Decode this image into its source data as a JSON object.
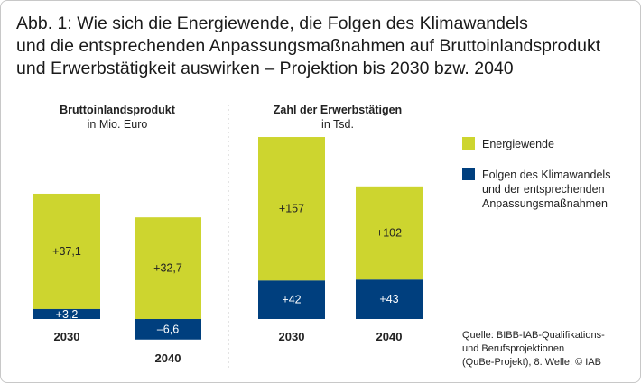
{
  "title_lines": [
    "Abb. 1: Wie sich die Energiewende, die Folgen des Klimawandels",
    "und die entsprechenden Anpassungsmaßnahmen auf Bruttoinlandsprodukt",
    "und Erwerbstätigkeit auswirken – Projektion bis 2030 bzw. 2040"
  ],
  "colors": {
    "energiewende": "#cdd52f",
    "klima": "#003f7e",
    "divider": "#c8c8c8"
  },
  "legend": [
    {
      "key": "energiewende",
      "lines": [
        "Energiewende"
      ]
    },
    {
      "key": "klima",
      "lines": [
        "Folgen des Klimawandels",
        "und  der entsprechenden",
        "Anpassungsmaßnahmen"
      ]
    }
  ],
  "source_lines": [
    "Quelle: BIBB-IAB-Qualifikations-",
    "und Berufsprojektionen",
    "(QuBe-Projekt), 8. Welle.  © IAB"
  ],
  "chart_data": [
    {
      "type": "bar",
      "stacked": true,
      "title": "Bruttoinlandsprodukt",
      "subtitle": "in Mio. Euro",
      "categories": [
        "2030",
        "2040"
      ],
      "series": [
        {
          "name": "Energiewende",
          "values": [
            37.1,
            32.7
          ],
          "labels": [
            "+37,1",
            "+32,7"
          ]
        },
        {
          "name": "Folgen des Klimawandels und der entsprechenden Anpassungsmaßnahmen",
          "values": [
            3.2,
            -6.6
          ],
          "labels": [
            "+3,2",
            "–6,6"
          ]
        }
      ]
    },
    {
      "type": "bar",
      "stacked": true,
      "title": "Zahl der Erwerbstätigen",
      "subtitle": "in Tsd.",
      "categories": [
        "2030",
        "2040"
      ],
      "series": [
        {
          "name": "Energiewende",
          "values": [
            157,
            102
          ],
          "labels": [
            "+157",
            "+102"
          ]
        },
        {
          "name": "Folgen des Klimawandels und der entsprechenden Anpassungsmaßnahmen",
          "values": [
            42,
            43
          ],
          "labels": [
            "+42",
            "+43"
          ]
        }
      ]
    }
  ]
}
